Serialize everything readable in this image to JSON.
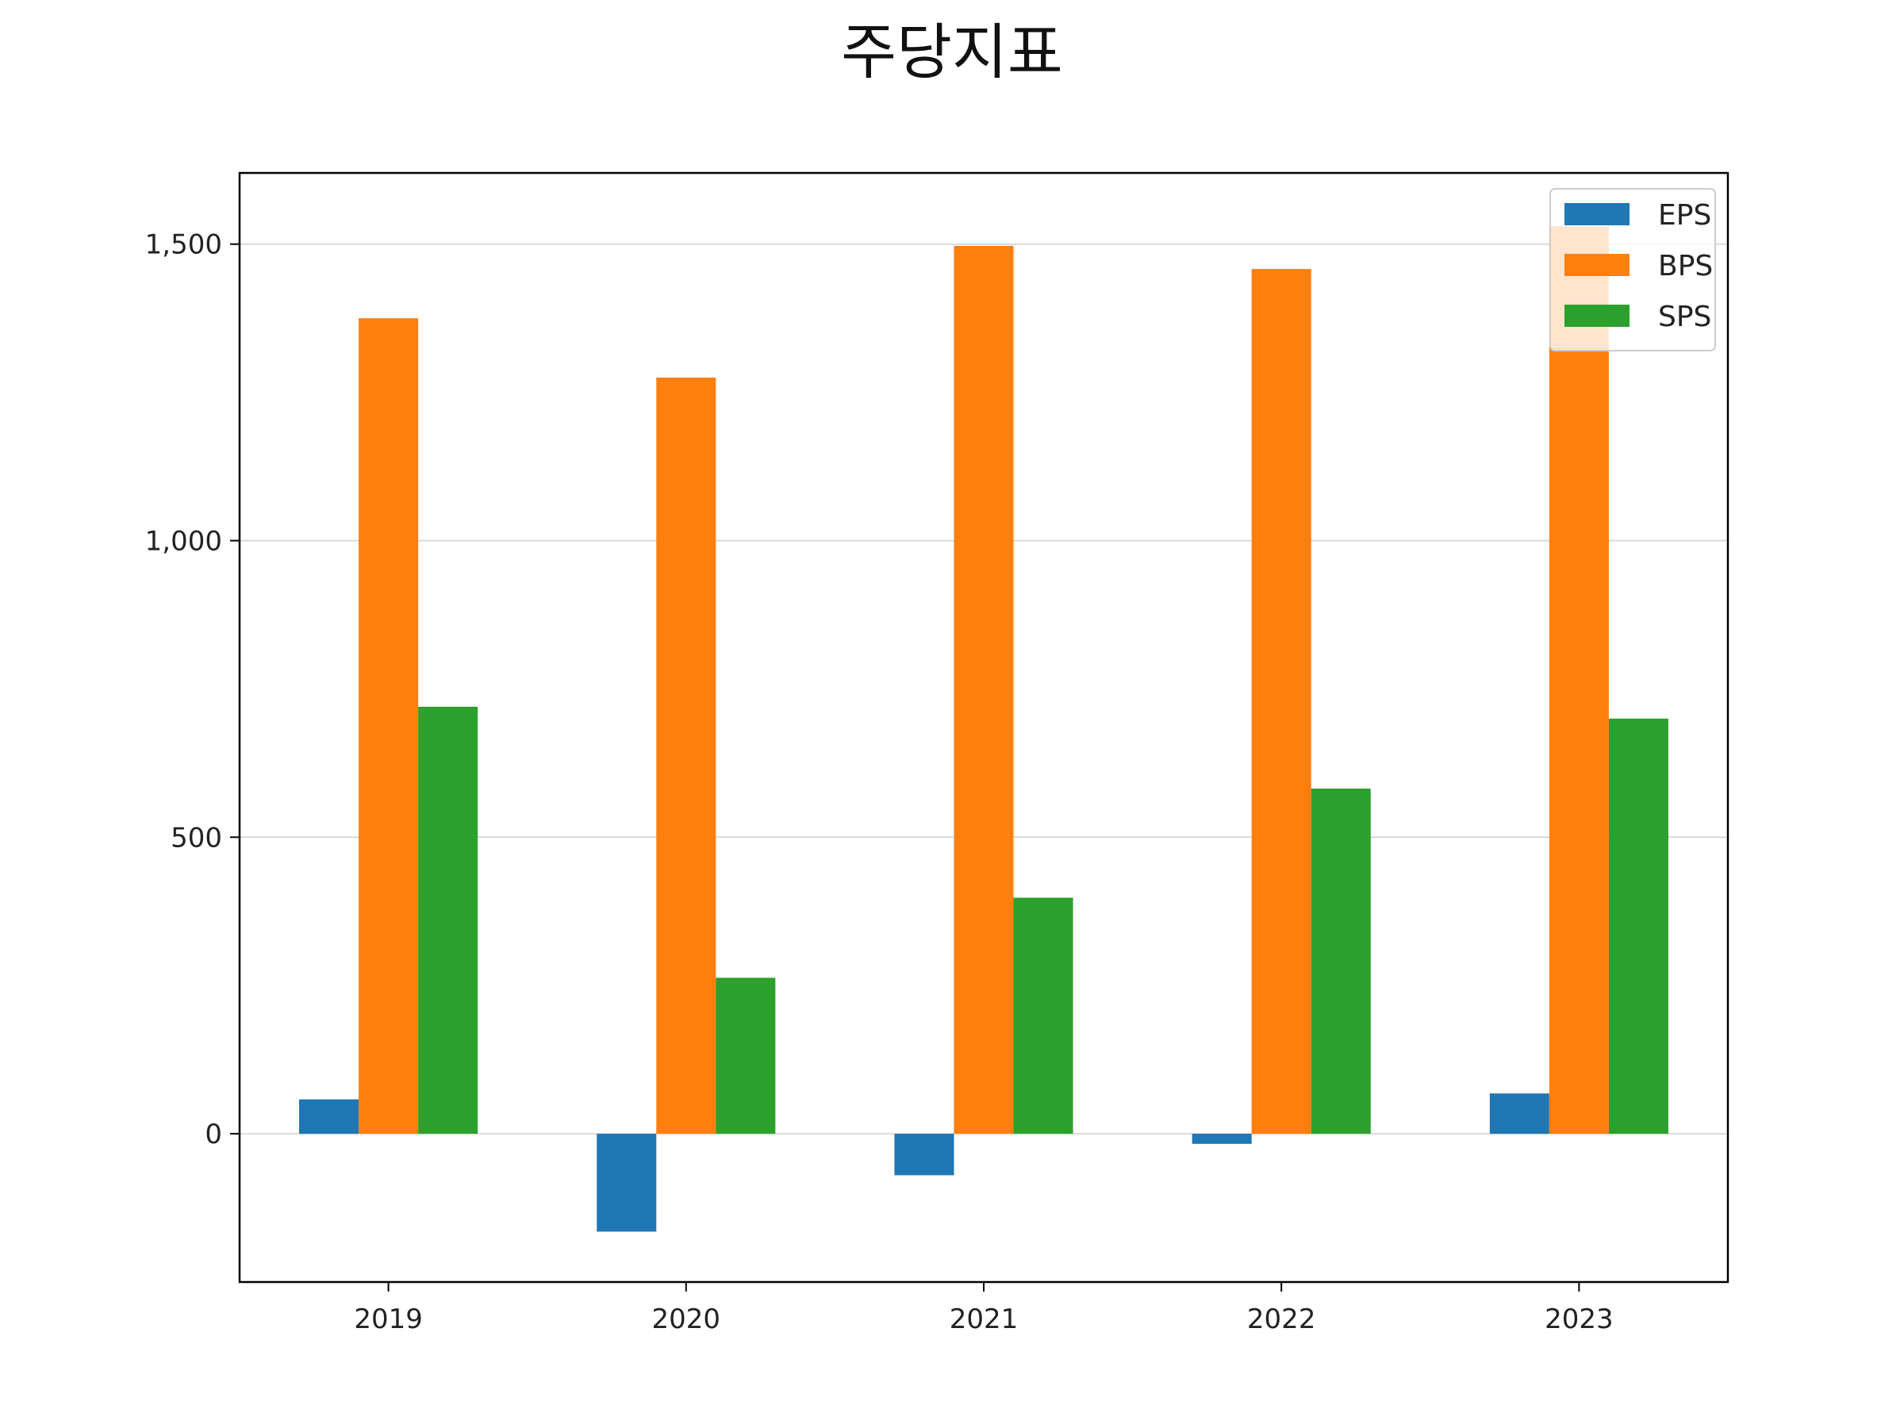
{
  "chart_data": {
    "type": "bar",
    "title": "주당지표",
    "xlabel": "",
    "ylabel": "",
    "categories": [
      "2019",
      "2020",
      "2021",
      "2022",
      "2023"
    ],
    "series": [
      {
        "name": "EPS",
        "color": "#1f77b4",
        "values": [
          58,
          -165,
          -70,
          -17,
          68
        ]
      },
      {
        "name": "BPS",
        "color": "#ff7f0e",
        "values": [
          1375,
          1275,
          1497,
          1458,
          1530
        ]
      },
      {
        "name": "SPS",
        "color": "#2ca02c",
        "values": [
          720,
          263,
          398,
          582,
          700
        ]
      }
    ],
    "ylim": [
      -250,
      1620
    ],
    "yticks": [
      0,
      500,
      1000,
      1500
    ],
    "ytick_labels": [
      "0",
      "500",
      "1,000",
      "1,500"
    ],
    "grid": "y",
    "legend_position": "upper-right"
  }
}
